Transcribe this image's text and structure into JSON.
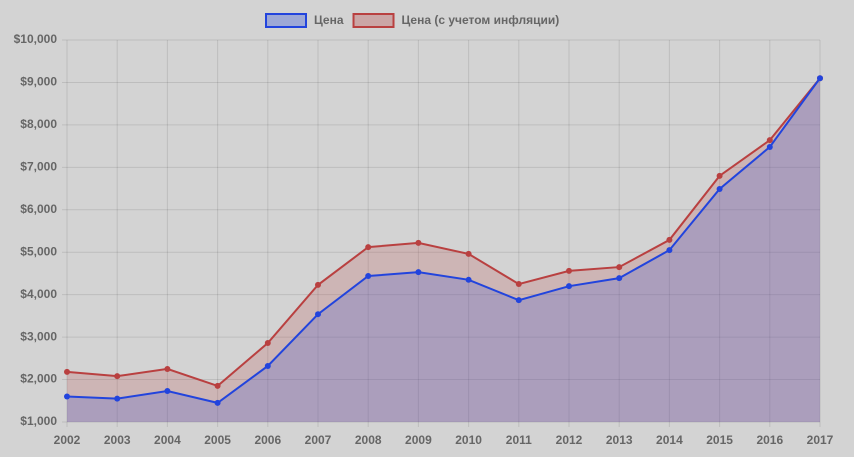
{
  "chart_data": {
    "type": "line",
    "categories": [
      "2002",
      "2003",
      "2004",
      "2005",
      "2006",
      "2007",
      "2008",
      "2009",
      "2010",
      "2011",
      "2012",
      "2013",
      "2014",
      "2015",
      "2016",
      "2017"
    ],
    "series": [
      {
        "name": "Цена",
        "color": "#2244dd",
        "values": [
          1600,
          1550,
          1730,
          1450,
          2320,
          3540,
          4440,
          4530,
          4350,
          3870,
          4200,
          4390,
          5050,
          6490,
          7480,
          9100
        ]
      },
      {
        "name": "Цена (с учетом инфляции)",
        "color": "#b94040",
        "values": [
          2180,
          2080,
          2250,
          1850,
          2860,
          4230,
          5120,
          5220,
          4960,
          4250,
          4560,
          4650,
          5290,
          6800,
          7640,
          9100
        ]
      }
    ],
    "ylim": [
      1000,
      10000
    ],
    "yticks": [
      {
        "value": 1000,
        "label": "$1,000"
      },
      {
        "value": 2000,
        "label": "$2,000"
      },
      {
        "value": 3000,
        "label": "$3,000"
      },
      {
        "value": 4000,
        "label": "$4,000"
      },
      {
        "value": 5000,
        "label": "$5,000"
      },
      {
        "value": 6000,
        "label": "$6,000"
      },
      {
        "value": 7000,
        "label": "$7,000"
      },
      {
        "value": 8000,
        "label": "$8,000"
      },
      {
        "value": 9000,
        "label": "$9,000"
      },
      {
        "value": 10000,
        "label": "$10,000"
      }
    ],
    "grid": true,
    "fill": true,
    "legend": "top"
  }
}
